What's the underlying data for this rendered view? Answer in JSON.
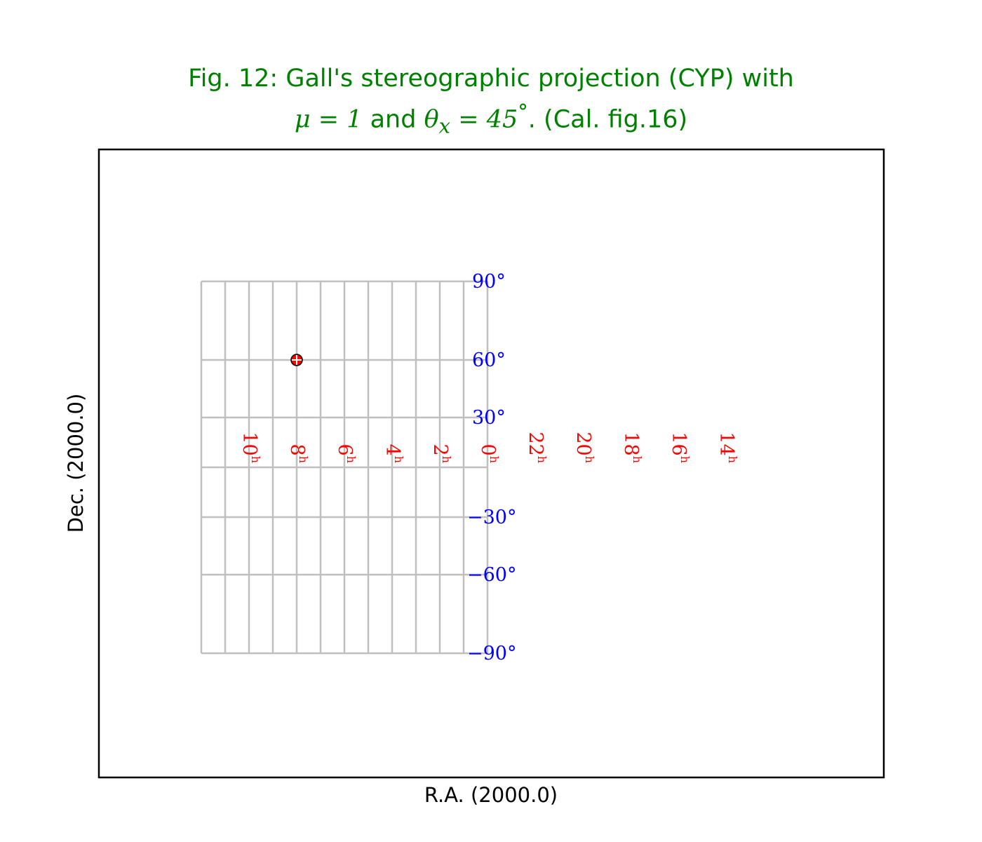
{
  "title": {
    "line1": "Fig. 12: Gall's stereographic projection (CYP) with",
    "mu_symbol": "μ",
    "mu_eq": " = 1",
    "and": " and ",
    "theta_symbol": "θ",
    "theta_sub": "x",
    "theta_eq": " = 45",
    "degree": "°",
    "tail": ". (Cal. fig.16)"
  },
  "xlabel": "R.A. (2000.0)",
  "ylabel": "Dec. (2000.0)",
  "colors": {
    "title": "#008000",
    "grid": "#bfbfbf",
    "ra_labels": "#ff0000",
    "dec_labels": "#0000ff",
    "marker_fill": "#ff0000",
    "frame": "#000000"
  },
  "chart_data": {
    "type": "scatter",
    "projection": "CYP",
    "mu": 1,
    "theta_x_deg": 45,
    "grid": true,
    "ra_hours": [
      12,
      10,
      8,
      6,
      4,
      2,
      0,
      22,
      20,
      18,
      16,
      14,
      12
    ],
    "ra_labels": [
      {
        "value": 10,
        "text": "10",
        "sup": "h"
      },
      {
        "value": 8,
        "text": "8",
        "sup": "h"
      },
      {
        "value": 6,
        "text": "6",
        "sup": "h"
      },
      {
        "value": 4,
        "text": "4",
        "sup": "h"
      },
      {
        "value": 2,
        "text": "2",
        "sup": "h"
      },
      {
        "value": 0,
        "text": "0",
        "sup": "h"
      },
      {
        "value": 22,
        "text": "22",
        "sup": "h"
      },
      {
        "value": 20,
        "text": "20",
        "sup": "h"
      },
      {
        "value": 18,
        "text": "18",
        "sup": "h"
      },
      {
        "value": 16,
        "text": "16",
        "sup": "h"
      },
      {
        "value": 14,
        "text": "14",
        "sup": "h"
      }
    ],
    "dec_deg": [
      -90,
      -60,
      -30,
      0,
      30,
      60,
      90
    ],
    "dec_labels": [
      {
        "value": 90,
        "text": "90°"
      },
      {
        "value": 60,
        "text": "60°"
      },
      {
        "value": 30,
        "text": "30°"
      },
      {
        "value": -30,
        "text": "−30°"
      },
      {
        "value": -60,
        "text": "−60°"
      },
      {
        "value": -90,
        "text": "−90°"
      }
    ],
    "points": [
      {
        "ra_hours": 8,
        "dec_deg": 60
      }
    ]
  }
}
